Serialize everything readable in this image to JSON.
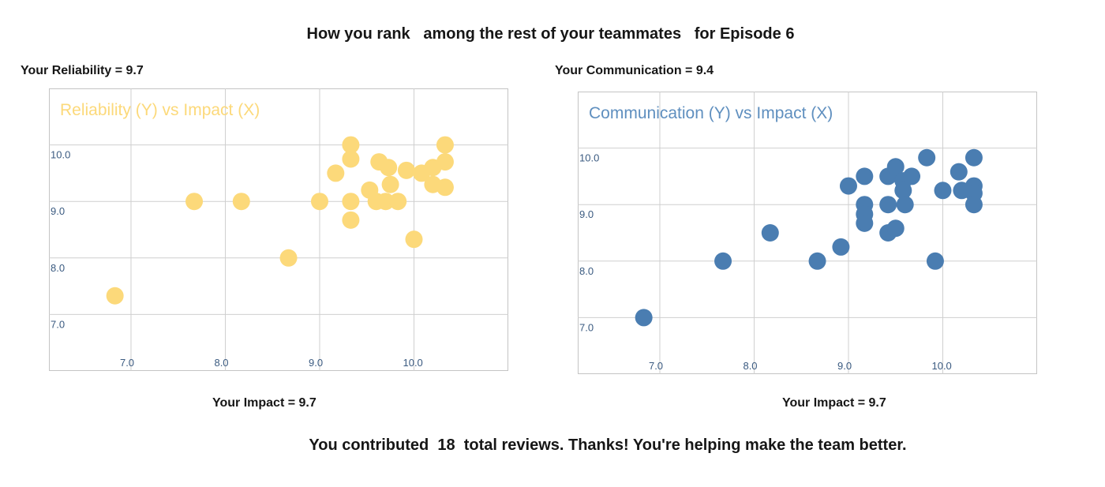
{
  "header": {
    "title": "How you rank   among the rest of your teammates   for Episode 6"
  },
  "left_panel": {
    "score_label": "Your Reliability = 9.7",
    "impact_label": "Your Impact = 9.7"
  },
  "right_panel": {
    "score_label": "Your Communication = 9.4",
    "impact_label": "Your Impact = 9.7"
  },
  "footer": {
    "prefix": "You contributed  ",
    "count": "18",
    "suffix": "  total reviews. Thanks! You're helping make the team better."
  },
  "chart_data": [
    {
      "type": "scatter",
      "title": "Reliability (Y) vs Impact (X)",
      "color": "#fcd97a",
      "title_color": "#fcd97a",
      "xlim": [
        6.13,
        11.0
      ],
      "ylim": [
        6.0,
        11.0
      ],
      "x_ticks": [
        7,
        8,
        9,
        10
      ],
      "y_ticks": [
        7,
        8,
        9,
        10
      ],
      "x_tick_labels": [
        "7.0",
        "8.0",
        "9.0",
        "10.0"
      ],
      "y_tick_labels": [
        "7.0",
        "8.0",
        "9.0",
        "10.0"
      ],
      "grid": true,
      "points": [
        {
          "x": 6.83,
          "y": 7.33
        },
        {
          "x": 7.67,
          "y": 9.0
        },
        {
          "x": 8.17,
          "y": 9.0
        },
        {
          "x": 8.67,
          "y": 8.0
        },
        {
          "x": 9.0,
          "y": 9.0
        },
        {
          "x": 9.17,
          "y": 9.5
        },
        {
          "x": 9.33,
          "y": 9.0
        },
        {
          "x": 9.33,
          "y": 9.75
        },
        {
          "x": 9.33,
          "y": 10.0
        },
        {
          "x": 9.33,
          "y": 8.67
        },
        {
          "x": 9.53,
          "y": 9.2
        },
        {
          "x": 9.6,
          "y": 9.0
        },
        {
          "x": 9.63,
          "y": 9.7
        },
        {
          "x": 9.7,
          "y": 9.0
        },
        {
          "x": 9.73,
          "y": 9.6
        },
        {
          "x": 9.75,
          "y": 9.3
        },
        {
          "x": 9.83,
          "y": 9.0
        },
        {
          "x": 9.92,
          "y": 9.55
        },
        {
          "x": 10.0,
          "y": 8.33
        },
        {
          "x": 10.08,
          "y": 9.5
        },
        {
          "x": 10.2,
          "y": 9.3
        },
        {
          "x": 10.2,
          "y": 9.6
        },
        {
          "x": 10.33,
          "y": 10.0
        },
        {
          "x": 10.33,
          "y": 9.7
        },
        {
          "x": 10.33,
          "y": 9.25
        }
      ]
    },
    {
      "type": "scatter",
      "title": "Communication (Y) vs Impact (X)",
      "color": "#4a7db1",
      "title_color": "#5f8fbf",
      "xlim": [
        6.13,
        11.0
      ],
      "ylim": [
        6.0,
        11.0
      ],
      "x_ticks": [
        7,
        8,
        9,
        10
      ],
      "y_ticks": [
        7,
        8,
        9,
        10
      ],
      "x_tick_labels": [
        "7.0",
        "8.0",
        "9.0",
        "10.0"
      ],
      "y_tick_labels": [
        "7.0",
        "8.0",
        "9.0",
        "10.0"
      ],
      "grid": true,
      "points": [
        {
          "x": 6.83,
          "y": 7.0
        },
        {
          "x": 7.67,
          "y": 8.0
        },
        {
          "x": 8.17,
          "y": 8.5
        },
        {
          "x": 8.67,
          "y": 8.0
        },
        {
          "x": 8.92,
          "y": 8.25
        },
        {
          "x": 9.0,
          "y": 9.33
        },
        {
          "x": 9.17,
          "y": 9.5
        },
        {
          "x": 9.17,
          "y": 9.0
        },
        {
          "x": 9.17,
          "y": 8.83
        },
        {
          "x": 9.17,
          "y": 8.67
        },
        {
          "x": 9.42,
          "y": 9.0
        },
        {
          "x": 9.42,
          "y": 9.5
        },
        {
          "x": 9.42,
          "y": 8.5
        },
        {
          "x": 9.5,
          "y": 8.58
        },
        {
          "x": 9.5,
          "y": 9.67
        },
        {
          "x": 9.58,
          "y": 9.42
        },
        {
          "x": 9.58,
          "y": 9.25
        },
        {
          "x": 9.67,
          "y": 9.5
        },
        {
          "x": 9.6,
          "y": 9.0
        },
        {
          "x": 9.83,
          "y": 9.83
        },
        {
          "x": 9.92,
          "y": 8.0
        },
        {
          "x": 10.0,
          "y": 9.25
        },
        {
          "x": 10.17,
          "y": 9.58
        },
        {
          "x": 10.2,
          "y": 9.25
        },
        {
          "x": 10.33,
          "y": 9.83
        },
        {
          "x": 10.33,
          "y": 9.33
        },
        {
          "x": 10.33,
          "y": 9.2
        },
        {
          "x": 10.33,
          "y": 9.0
        }
      ]
    }
  ]
}
